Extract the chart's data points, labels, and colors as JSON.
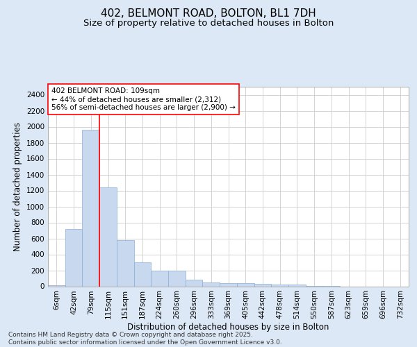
{
  "title_line1": "402, BELMONT ROAD, BOLTON, BL1 7DH",
  "title_line2": "Size of property relative to detached houses in Bolton",
  "xlabel": "Distribution of detached houses by size in Bolton",
  "ylabel": "Number of detached properties",
  "categories": [
    "6sqm",
    "42sqm",
    "79sqm",
    "115sqm",
    "151sqm",
    "187sqm",
    "224sqm",
    "260sqm",
    "296sqm",
    "333sqm",
    "369sqm",
    "405sqm",
    "442sqm",
    "478sqm",
    "514sqm",
    "550sqm",
    "587sqm",
    "623sqm",
    "659sqm",
    "696sqm",
    "732sqm"
  ],
  "values": [
    15,
    720,
    1960,
    1235,
    575,
    300,
    200,
    200,
    80,
    45,
    38,
    38,
    30,
    25,
    20,
    5,
    5,
    0,
    0,
    0,
    0
  ],
  "bar_color": "#c8d8ee",
  "bar_edge_color": "#8aaed4",
  "vline_color": "red",
  "vline_x_idx": 3,
  "annotation_text": "402 BELMONT ROAD: 109sqm\n← 44% of detached houses are smaller (2,312)\n56% of semi-detached houses are larger (2,900) →",
  "annotation_box_edgecolor": "red",
  "annotation_box_facecolor": "white",
  "ylim": [
    0,
    2500
  ],
  "yticks": [
    0,
    200,
    400,
    600,
    800,
    1000,
    1200,
    1400,
    1600,
    1800,
    2000,
    2200,
    2400
  ],
  "grid_color": "#cccccc",
  "bg_color": "#dce8f5",
  "plot_bg_color": "#ffffff",
  "footer": "Contains HM Land Registry data © Crown copyright and database right 2025.\nContains public sector information licensed under the Open Government Licence v3.0.",
  "title_fontsize": 11,
  "subtitle_fontsize": 9.5,
  "tick_fontsize": 7.5,
  "label_fontsize": 8.5,
  "annotation_fontsize": 7.5,
  "footer_fontsize": 6.5
}
